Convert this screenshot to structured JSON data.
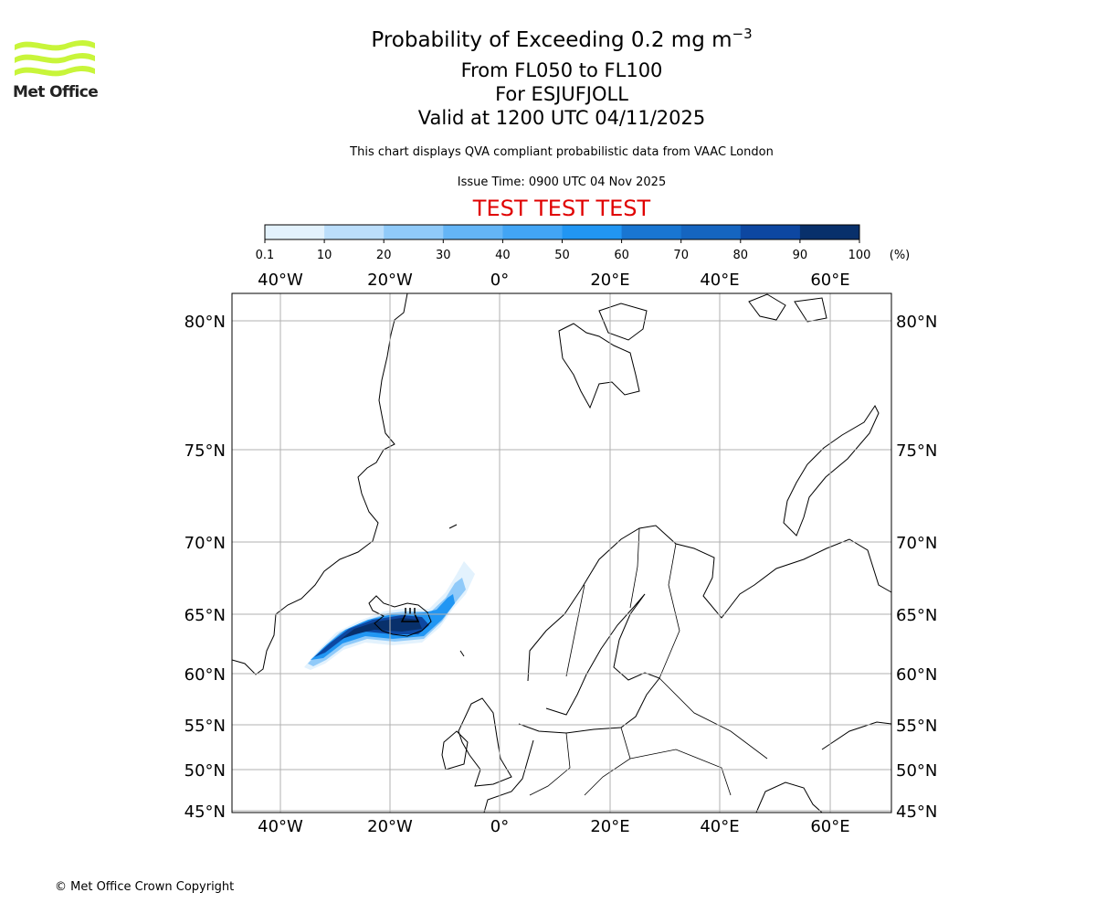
{
  "logo": {
    "text": "Met Office",
    "brand_color": "#c8f53a"
  },
  "header": {
    "title_main": "Probability of Exceeding 0.2 mg m",
    "title_sup": "−3",
    "levels": "From FL050 to FL100",
    "volcano": "For ESJUFJOLL",
    "valid": "Valid at 1200 UTC 04/11/2025",
    "note": "This chart displays QVA compliant probabilistic data from VAAC London",
    "issue_time": "Issue Time: 0900 UTC 04 Nov 2025",
    "test_banner": "TEST TEST TEST",
    "test_color": "#e00000"
  },
  "colorbar": {
    "ticks": [
      "0.1",
      "10",
      "20",
      "30",
      "40",
      "50",
      "60",
      "70",
      "80",
      "90",
      "100"
    ],
    "unit": "(%)",
    "colors": [
      "#e3f2fd",
      "#bbdefb",
      "#90caf9",
      "#64b5f6",
      "#42a5f5",
      "#2196f3",
      "#1976d2",
      "#1565c0",
      "#0d47a1",
      "#08306b"
    ]
  },
  "map": {
    "lon_labels": [
      "40°W",
      "20°W",
      "0°",
      "20°E",
      "40°E",
      "60°E"
    ],
    "lat_labels": [
      "80°N",
      "75°N",
      "70°N",
      "65°N",
      "60°N",
      "55°N",
      "50°N",
      "45°N"
    ]
  },
  "footer": {
    "copyright": "© Met Office Crown Copyright"
  }
}
